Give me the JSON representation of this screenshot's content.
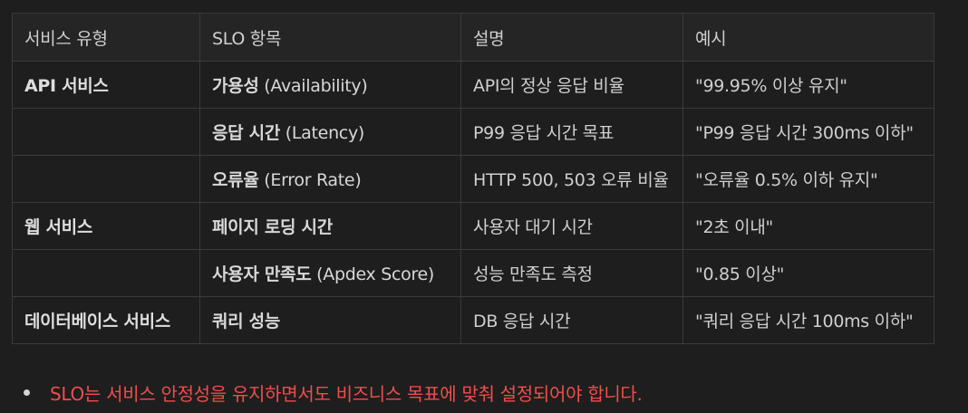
{
  "table": {
    "headers": [
      "서비스 유형",
      "SLO 항목",
      "설명",
      "예시"
    ],
    "rows": [
      {
        "service": "API 서비스",
        "item_bold": "가용성",
        "item_rest": " (Availability)",
        "desc": "API의 정상 응답 비율",
        "example": "\"99.95% 이상 유지\""
      },
      {
        "service": "",
        "item_bold": "응답 시간",
        "item_rest": " (Latency)",
        "desc": "P99 응답 시간 목표",
        "example": "\"P99 응답 시간 300ms 이하\""
      },
      {
        "service": "",
        "item_bold": "오류율",
        "item_rest": " (Error Rate)",
        "desc": "HTTP 500, 503 오류 비율",
        "example": "\"오류율 0.5% 이하 유지\""
      },
      {
        "service": "웹 서비스",
        "item_bold": "페이지 로딩 시간",
        "item_rest": "",
        "desc": "사용자 대기 시간",
        "example": "\"2초 이내\""
      },
      {
        "service": "",
        "item_bold": "사용자 만족도",
        "item_rest": " (Apdex Score)",
        "desc": "성능 만족도 측정",
        "example": "\"0.85 이상\""
      },
      {
        "service": "데이터베이스 서비스",
        "item_bold": "쿼리 성능",
        "item_rest": "",
        "desc": "DB 응답 시간",
        "example": "\"쿼리 응답 시간 100ms 이하\""
      }
    ]
  },
  "note": {
    "text": "SLO는 서비스 안정성을 유지하면서도 비즈니스 목표에 맞춰 설정되어야 합니다."
  }
}
